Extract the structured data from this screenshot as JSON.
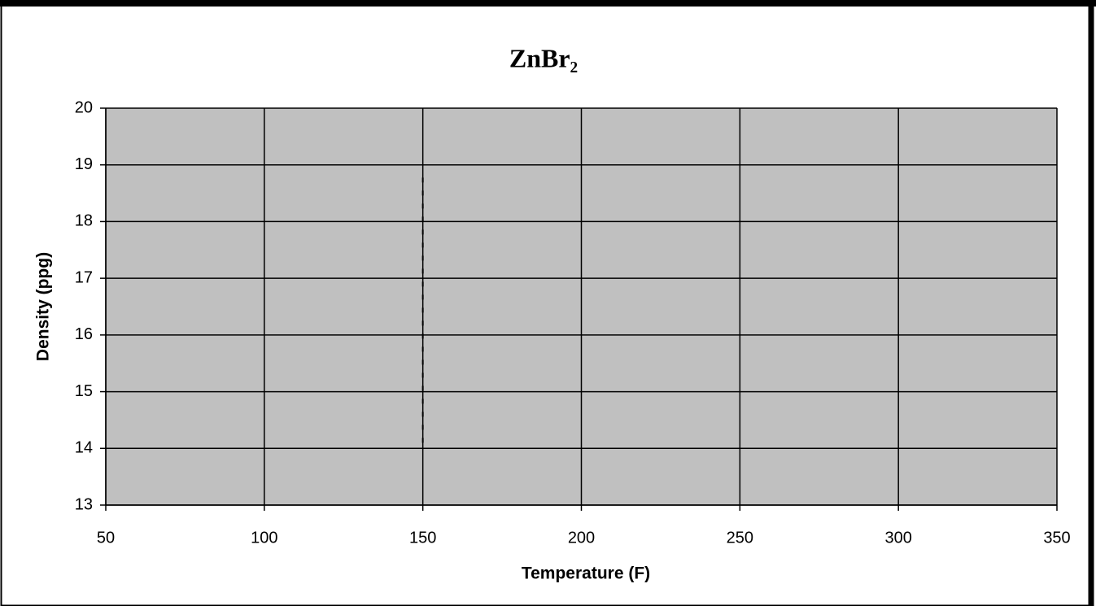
{
  "chart_data": {
    "type": "line",
    "title": "ZnBr₂",
    "x_label": "Temperature (F)",
    "y_label": "Density (ppg)",
    "xlim": [
      50,
      350
    ],
    "xticks": [
      50,
      100,
      150,
      200,
      250,
      300,
      350
    ],
    "ylim": [
      13,
      20
    ],
    "yticks": [
      13,
      14,
      15,
      16,
      17,
      18,
      19,
      20
    ],
    "grid": true,
    "background": "#c0c0c0",
    "series": [
      {
        "color": "#000000",
        "dashed": true,
        "x": [
          150,
          150
        ],
        "values": [
          14.1,
          18.8
        ]
      }
    ]
  }
}
